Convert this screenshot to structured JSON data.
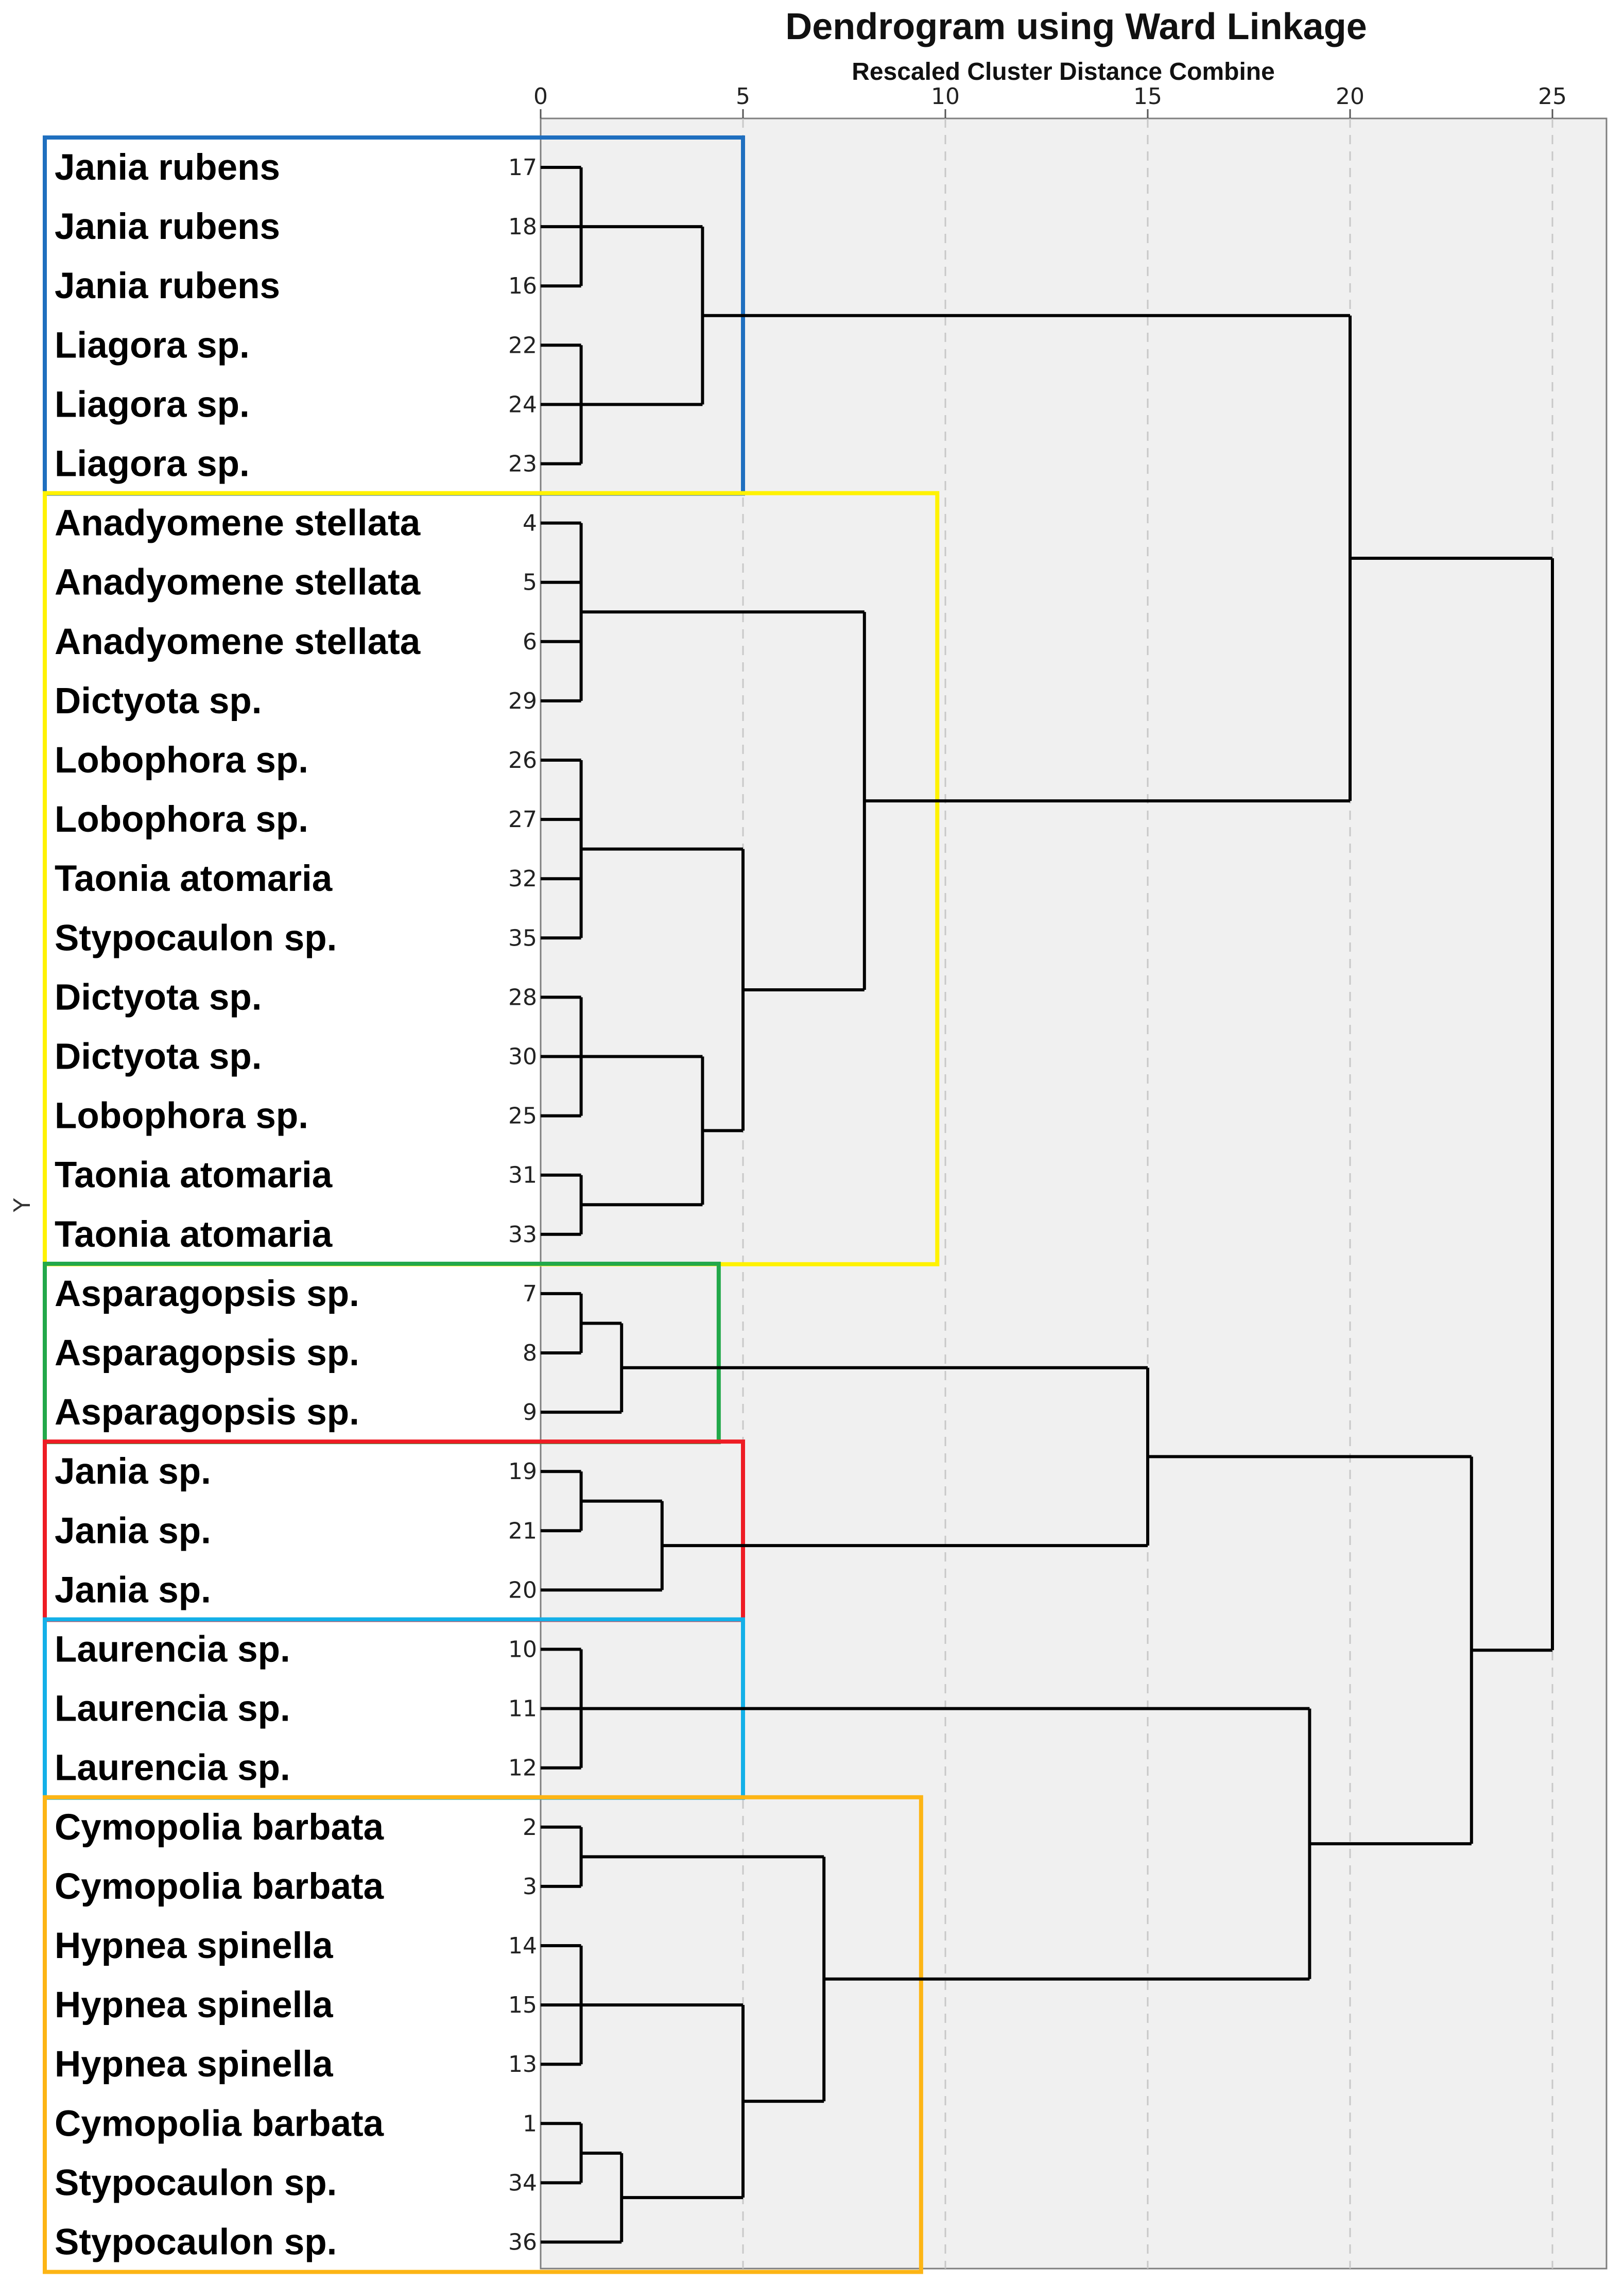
{
  "chart_data": {
    "type": "dendrogram",
    "title": "Dendrogram using Ward Linkage",
    "subtitle": "Rescaled Cluster Distance Combine",
    "xlabel": "",
    "ylabel": "Y",
    "xlim": [
      0,
      25
    ],
    "x_ticks": [
      "0",
      "5",
      "10",
      "15",
      "20",
      "25"
    ],
    "grid": "vertical dashed",
    "leaves": [
      {
        "label": "Jania rubens",
        "case": "17"
      },
      {
        "label": "Jania rubens",
        "case": "18"
      },
      {
        "label": "Jania rubens",
        "case": "16"
      },
      {
        "label": "Liagora sp.",
        "case": "22"
      },
      {
        "label": "Liagora sp.",
        "case": "24"
      },
      {
        "label": "Liagora sp.",
        "case": "23"
      },
      {
        "label": "Anadyomene stellata",
        "case": "4"
      },
      {
        "label": "Anadyomene stellata",
        "case": "5"
      },
      {
        "label": "Anadyomene stellata",
        "case": "6"
      },
      {
        "label": "Dictyota sp.",
        "case": "29"
      },
      {
        "label": "Lobophora sp.",
        "case": "26"
      },
      {
        "label": "Lobophora sp.",
        "case": "27"
      },
      {
        "label": "Taonia atomaria",
        "case": "32"
      },
      {
        "label": "Stypocaulon sp.",
        "case": "35"
      },
      {
        "label": "Dictyota sp.",
        "case": "28"
      },
      {
        "label": "Dictyota sp.",
        "case": "30"
      },
      {
        "label": "Lobophora sp.",
        "case": "25"
      },
      {
        "label": "Taonia atomaria",
        "case": "31"
      },
      {
        "label": "Taonia atomaria",
        "case": "33"
      },
      {
        "label": "Asparagopsis sp.",
        "case": "7"
      },
      {
        "label": "Asparagopsis sp.",
        "case": "8"
      },
      {
        "label": "Asparagopsis sp.",
        "case": "9"
      },
      {
        "label": "Jania sp.",
        "case": "19"
      },
      {
        "label": "Jania sp.",
        "case": "21"
      },
      {
        "label": "Jania sp.",
        "case": "20"
      },
      {
        "label": "Laurencia sp.",
        "case": "10"
      },
      {
        "label": "Laurencia sp.",
        "case": "11"
      },
      {
        "label": "Laurencia sp.",
        "case": "12"
      },
      {
        "label": "Cymopolia barbata",
        "case": "2"
      },
      {
        "label": "Cymopolia barbata",
        "case": "3"
      },
      {
        "label": "Hypnea spinella",
        "case": "14"
      },
      {
        "label": "Hypnea spinella",
        "case": "15"
      },
      {
        "label": "Hypnea spinella",
        "case": "13"
      },
      {
        "label": "Cymopolia barbata",
        "case": "1"
      },
      {
        "label": "Stypocaulon sp.",
        "case": "34"
      },
      {
        "label": "Stypocaulon sp.",
        "case": "36"
      }
    ],
    "merges": [
      {
        "id": "A",
        "children": [
          "L0",
          "L1",
          "L2"
        ],
        "height": 1
      },
      {
        "id": "B",
        "children": [
          "L3",
          "L4",
          "L5"
        ],
        "height": 1
      },
      {
        "id": "C",
        "children": [
          "A",
          "B"
        ],
        "height": 4
      },
      {
        "id": "D",
        "children": [
          "L6",
          "L7",
          "L8",
          "L9"
        ],
        "height": 1
      },
      {
        "id": "E",
        "children": [
          "L10",
          "L11",
          "L12",
          "L13"
        ],
        "height": 1
      },
      {
        "id": "F",
        "children": [
          "L14",
          "L15",
          "L16"
        ],
        "height": 1
      },
      {
        "id": "G",
        "children": [
          "L17",
          "L18"
        ],
        "height": 1
      },
      {
        "id": "H",
        "children": [
          "F",
          "G"
        ],
        "height": 4
      },
      {
        "id": "I",
        "children": [
          "E",
          "H"
        ],
        "height": 5
      },
      {
        "id": "J",
        "children": [
          "D",
          "I"
        ],
        "height": 8
      },
      {
        "id": "K",
        "children": [
          "C",
          "J"
        ],
        "height": 20
      },
      {
        "id": "M",
        "children": [
          "L19",
          "L20"
        ],
        "height": 1
      },
      {
        "id": "N",
        "children": [
          "M",
          "L21"
        ],
        "height": 2
      },
      {
        "id": "O",
        "children": [
          "L22",
          "L23"
        ],
        "height": 1
      },
      {
        "id": "P",
        "children": [
          "O",
          "L24"
        ],
        "height": 3
      },
      {
        "id": "Q",
        "children": [
          "N",
          "P"
        ],
        "height": 15
      },
      {
        "id": "R",
        "children": [
          "L25",
          "L26",
          "L27"
        ],
        "height": 1
      },
      {
        "id": "S",
        "children": [
          "L28",
          "L29"
        ],
        "height": 1
      },
      {
        "id": "T",
        "children": [
          "L30",
          "L31",
          "L32"
        ],
        "height": 1
      },
      {
        "id": "U",
        "children": [
          "L33",
          "L34"
        ],
        "height": 1
      },
      {
        "id": "V",
        "children": [
          "U",
          "L35"
        ],
        "height": 2
      },
      {
        "id": "W",
        "children": [
          "T",
          "V"
        ],
        "height": 5
      },
      {
        "id": "X",
        "children": [
          "S",
          "W"
        ],
        "height": 7
      },
      {
        "id": "Y",
        "children": [
          "R",
          "X"
        ],
        "height": 19
      },
      {
        "id": "Z",
        "children": [
          "Q",
          "Y"
        ],
        "height": 23
      },
      {
        "id": "ROOT",
        "children": [
          "K",
          "Z"
        ],
        "height": 25
      }
    ],
    "groups": [
      {
        "first": 0,
        "last": 5,
        "color": "#1F6FBF",
        "extent": 5.0
      },
      {
        "first": 6,
        "last": 18,
        "color": "#FFF200",
        "extent": 9.8
      },
      {
        "first": 19,
        "last": 21,
        "color": "#22A84A",
        "extent": 4.4
      },
      {
        "first": 22,
        "last": 24,
        "color": "#EE1C24",
        "extent": 5.0
      },
      {
        "first": 25,
        "last": 27,
        "color": "#14B0E8",
        "extent": 5.0
      },
      {
        "first": 28,
        "last": 35,
        "color": "#FDB515",
        "extent": 9.4
      }
    ],
    "colors": {
      "plot_background": "#F0F0F0",
      "line": "#000000",
      "grid": "#C8C8C8"
    }
  }
}
